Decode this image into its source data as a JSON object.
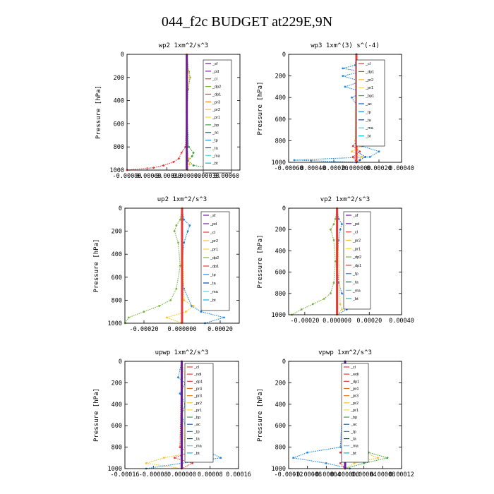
{
  "title": "044_f2c  BUDGET at229E,9N",
  "colors": {
    "sf": "#6a1b9a",
    "pd": "#7b1fa2",
    "cl": "#e53935",
    "dp": "#e53935",
    "pr": "#fbc02d",
    "bp": "#43a047",
    "ac": "#1565c0",
    "tp": "#1e88e5",
    "ta": "#0d47a1",
    "ma": "#4dd0e1",
    "bt": "#00bcd4",
    "dp2": "#7cb342",
    "pr1": "#fdd835",
    "pr2": "#fbc02d",
    "pr3": "#f57f17",
    "pr4": "#ef6c00",
    "ndi": "#e53935",
    "wdi": "#e53935"
  },
  "chart_data": [
    {
      "type": "line",
      "title": "wp2  1xm^2/s^3",
      "ylabel": "Pressure [hPa]",
      "xlim": [
        -0.0009,
        0.0008
      ],
      "ylim": [
        1000,
        0
      ],
      "yticks": [
        0,
        200,
        400,
        600,
        800,
        1000
      ],
      "xtick_labels": [
        "-0.00090",
        "-0.00060",
        "-0.00030",
        "0.000000",
        "0.00030",
        "0.00060"
      ],
      "xtick_values": [
        -0.0009,
        -0.0006,
        -0.0003,
        0.0,
        0.0003,
        0.0006
      ],
      "legend": [
        "_sf",
        "_pd",
        "_cl",
        "_dp2",
        "_dp1",
        "_pr3",
        "_pr2",
        "_pr1",
        "_bp",
        "_ac",
        "_tp",
        "_ta",
        "_ma",
        "_bt"
      ],
      "series": [
        {
          "key": "cl",
          "y": [
            0,
            200,
            500,
            800,
            850,
            900,
            930,
            960,
            980,
            1000
          ],
          "x": [
            0,
            0,
            0,
            -2e-05,
            -8e-05,
            -0.00012,
            -0.0002,
            -0.00035,
            -0.0005,
            -0.0009
          ]
        },
        {
          "key": "bp",
          "y": [
            0,
            150,
            200,
            300,
            500,
            800,
            850,
            880,
            920,
            960,
            1000
          ],
          "x": [
            0,
            3e-05,
            5e-05,
            2e-05,
            0,
            3e-05,
            0.0001,
            8e-05,
            2e-05,
            0.0001,
            0.0006
          ]
        },
        {
          "key": "pr",
          "y": [
            0,
            150,
            200,
            300,
            800,
            900,
            950,
            1000
          ],
          "x": [
            0,
            2e-05,
            4e-05,
            1e-05,
            0,
            3e-05,
            4e-05,
            1e-05
          ]
        },
        {
          "key": "sf",
          "y": [
            0,
            1000
          ],
          "x": [
            0,
            0
          ]
        }
      ]
    },
    {
      "type": "line",
      "title": "wp3  1xm^(3) s^(-4)",
      "ylabel": "Pressure [hPa]",
      "xlim": [
        -0.0006,
        0.0004
      ],
      "ylim": [
        1000,
        0
      ],
      "yticks": [
        0,
        200,
        400,
        600,
        800,
        1000
      ],
      "xtick_labels": [
        "-0.00060",
        "-0.00040",
        "-0.00020",
        "0.000000",
        "0.00020",
        "0.00040"
      ],
      "xtick_values": [
        -0.0006,
        -0.0004,
        -0.0002,
        0.0,
        0.0002,
        0.0004
      ],
      "legend": [
        "_cl",
        "_dp1",
        "_pr2",
        "_pr1",
        "_bp1",
        "_ac",
        "_tp",
        "_ta",
        "_ma",
        "_bt"
      ],
      "series": [
        {
          "key": "tp",
          "y": [
            0,
            100,
            130,
            160,
            200,
            250,
            300,
            350,
            400,
            500,
            600,
            700,
            800,
            850,
            900,
            950,
            980,
            1000
          ],
          "x": [
            0,
            -1e-05,
            -0.00012,
            5e-05,
            -0.00012,
            4e-05,
            -0.0001,
            6e-05,
            -4e-05,
            2e-05,
            0,
            0,
            3e-05,
            5e-05,
            0.0002,
            0.00012,
            -0.00055,
            0
          ]
        },
        {
          "key": "pr",
          "y": [
            0,
            800,
            850,
            900,
            950,
            1000
          ],
          "x": [
            0,
            -1e-05,
            4e-05,
            -4e-05,
            5e-05,
            0
          ]
        },
        {
          "key": "cl",
          "y": [
            0,
            800,
            850,
            900,
            950,
            1000
          ],
          "x": [
            0,
            1e-05,
            -3e-05,
            3e-05,
            -3e-05,
            0
          ]
        },
        {
          "key": "ac",
          "y": [
            0,
            900,
            950,
            980,
            1000
          ],
          "x": [
            0,
            0,
            8e-05,
            3e-05,
            0
          ]
        },
        {
          "key": "cl",
          "y": [
            0,
            1000
          ],
          "x": [
            0,
            0
          ]
        }
      ]
    },
    {
      "type": "line",
      "title": "up2  1xm^2/s^3",
      "ylabel": "Pressure [hPa]",
      "xlim": [
        -0.0003,
        0.0003
      ],
      "ylim": [
        1000,
        0
      ],
      "yticks": [
        0,
        200,
        400,
        600,
        800,
        1000
      ],
      "xtick_labels": [
        "-0.00020",
        "0.000000",
        "0.00020"
      ],
      "xtick_values": [
        -0.0002,
        0.0,
        0.0002
      ],
      "legend": [
        "_sf",
        "_pd",
        "_cl",
        "_pr2",
        "_pr1",
        "_dp2",
        "_dp1",
        "_tp",
        "_ta",
        "_ma",
        "_bt"
      ],
      "series": [
        {
          "key": "dp2",
          "y": [
            0,
            100,
            150,
            200,
            300,
            500,
            700,
            800,
            850,
            900,
            950,
            1000
          ],
          "x": [
            0,
            -1e-05,
            -3e-05,
            -4e-05,
            -2e-05,
            -1e-05,
            -3e-05,
            -6e-05,
            -0.00012,
            -0.0002,
            -0.00028,
            -0.0003
          ]
        },
        {
          "key": "tp",
          "y": [
            0,
            100,
            150,
            200,
            300,
            500,
            700,
            850,
            900,
            950,
            1000
          ],
          "x": [
            0,
            1e-05,
            4e-05,
            3e-05,
            1e-05,
            0,
            1e-05,
            5e-05,
            0.0001,
            0.00022,
            0.00012
          ]
        },
        {
          "key": "pr",
          "y": [
            0,
            800,
            850,
            900,
            950,
            1000
          ],
          "x": [
            0,
            1e-05,
            6e-05,
            2e-05,
            -8e-05,
            0
          ]
        },
        {
          "key": "cl",
          "y": [
            0,
            1000
          ],
          "x": [
            0,
            0
          ]
        }
      ]
    },
    {
      "type": "line",
      "title": "vp2  1xm^2/s^3",
      "ylabel": "Pressure [hPa]",
      "xlim": [
        -0.0003,
        0.0004
      ],
      "ylim": [
        1000,
        0
      ],
      "yticks": [
        0,
        200,
        400,
        600,
        800,
        1000
      ],
      "xtick_labels": [
        "-0.00020",
        "0.000000",
        "0.00020",
        "0.00040"
      ],
      "xtick_values": [
        -0.0002,
        0.0,
        0.0002,
        0.0004
      ],
      "legend": [
        "_sf",
        "_pd",
        "_cl",
        "_pr2",
        "_pr1",
        "_dp2",
        "_dp1",
        "_tp",
        "_ta",
        "_ma",
        "_bt"
      ],
      "series": [
        {
          "key": "dp2",
          "y": [
            0,
            100,
            150,
            200,
            300,
            500,
            700,
            800,
            850,
            900,
            950,
            1000
          ],
          "x": [
            0,
            -1e-05,
            -2e-05,
            -4e-05,
            -2e-05,
            -1e-05,
            -2e-05,
            -4e-05,
            -8e-05,
            -0.00015,
            -0.00022,
            -0.00028
          ]
        },
        {
          "key": "tp",
          "y": [
            0,
            100,
            150,
            200,
            300,
            500,
            700,
            800,
            850,
            900,
            950,
            1000
          ],
          "x": [
            0,
            1e-05,
            3e-05,
            2e-05,
            1e-05,
            0,
            1e-05,
            3e-05,
            8e-05,
            0.00014,
            6e-05,
            0
          ]
        },
        {
          "key": "pr",
          "y": [
            0,
            900,
            950,
            1000
          ],
          "x": [
            0,
            2e-05,
            3e-05,
            0
          ]
        },
        {
          "key": "cl",
          "y": [
            0,
            1000
          ],
          "x": [
            0,
            0
          ]
        }
      ]
    },
    {
      "type": "line",
      "title": "upwp  1xm^2/s^3",
      "ylabel": "Pressure [hPa]",
      "xlim": [
        -0.00016,
        0.00016
      ],
      "ylim": [
        1000,
        0
      ],
      "yticks": [
        0,
        200,
        400,
        600,
        800,
        1000
      ],
      "xtick_labels": [
        "-0.00016",
        "-0.00008",
        "0.000000",
        "0.00008",
        "0.00016"
      ],
      "xtick_values": [
        -0.00016,
        -8e-05,
        0.0,
        8e-05,
        0.00016
      ],
      "legend": [
        "_cl",
        "_ndi",
        "_dp1",
        "_pr4",
        "_pr3",
        "_pr2",
        "_pr1",
        "_bp",
        "_ac",
        "_tp",
        "_ta",
        "_ma",
        "_bt"
      ],
      "series": [
        {
          "key": "pr",
          "y": [
            0,
            150,
            200,
            300,
            400,
            500,
            800,
            850,
            900,
            950,
            1000
          ],
          "x": [
            0,
            1e-05,
            2e-05,
            1.5e-05,
            1e-05,
            0,
            1e-05,
            3e-05,
            -5e-05,
            -0.0001,
            0
          ]
        },
        {
          "key": "tp",
          "y": [
            0,
            150,
            200,
            300,
            400,
            500,
            800,
            850,
            900,
            950,
            1000
          ],
          "x": [
            0,
            -1e-05,
            1e-05,
            -5e-06,
            1e-05,
            0,
            3e-05,
            8e-05,
            0.00011,
            0,
            -0.0001
          ]
        },
        {
          "key": "cl",
          "y": [
            0,
            800,
            850,
            900,
            950,
            1000
          ],
          "x": [
            0,
            -5e-06,
            2e-05,
            -2e-05,
            3e-05,
            0
          ]
        },
        {
          "key": "sf",
          "y": [
            0,
            1000
          ],
          "x": [
            0,
            0
          ]
        }
      ]
    },
    {
      "type": "line",
      "title": "vpwp  1xm^2/s^3",
      "ylabel": "Pressure [hPa]",
      "xlim": [
        -0.00012,
        0.00012
      ],
      "ylim": [
        1000,
        0
      ],
      "yticks": [
        0,
        200,
        400,
        600,
        800,
        1000
      ],
      "xtick_labels": [
        "-0.00012",
        "-0.00008",
        "-0.00004",
        "0.000000",
        "0.00004",
        "0.00008",
        "0.00012"
      ],
      "xtick_values": [
        -0.00012,
        -8e-05,
        -4e-05,
        0.0,
        4e-05,
        8e-05,
        0.00012
      ],
      "legend": [
        "_cl",
        "_wdi",
        "_dp1",
        "_pr4",
        "_pr3",
        "_pr2",
        "_pr1",
        "_bp",
        "_ac",
        "_tp",
        "_ta",
        "_ma",
        "_bt"
      ],
      "series": [
        {
          "key": "pr",
          "y": [
            0,
            150,
            200,
            300,
            400,
            800,
            850,
            900,
            950,
            1000
          ],
          "x": [
            0,
            1e-05,
            8e-06,
            4e-06,
            0,
            2e-05,
            4e-05,
            7e-05,
            2e-05,
            0
          ]
        },
        {
          "key": "tp",
          "y": [
            0,
            800,
            850,
            900,
            950,
            1000
          ],
          "x": [
            0,
            -1e-05,
            -8e-05,
            -0.00011,
            -4e-05,
            1e-05
          ]
        },
        {
          "key": "bp",
          "y": [
            0,
            800,
            850,
            900,
            950,
            1000
          ],
          "x": [
            0,
            2e-05,
            5e-05,
            9e-05,
            4e-05,
            0
          ]
        },
        {
          "key": "cl",
          "y": [
            0,
            800,
            850,
            900,
            950,
            1000
          ],
          "x": [
            0,
            5e-06,
            -1e-05,
            1e-05,
            -1e-05,
            0
          ]
        },
        {
          "key": "sf",
          "y": [
            0,
            1000
          ],
          "x": [
            0,
            0
          ]
        }
      ]
    }
  ]
}
